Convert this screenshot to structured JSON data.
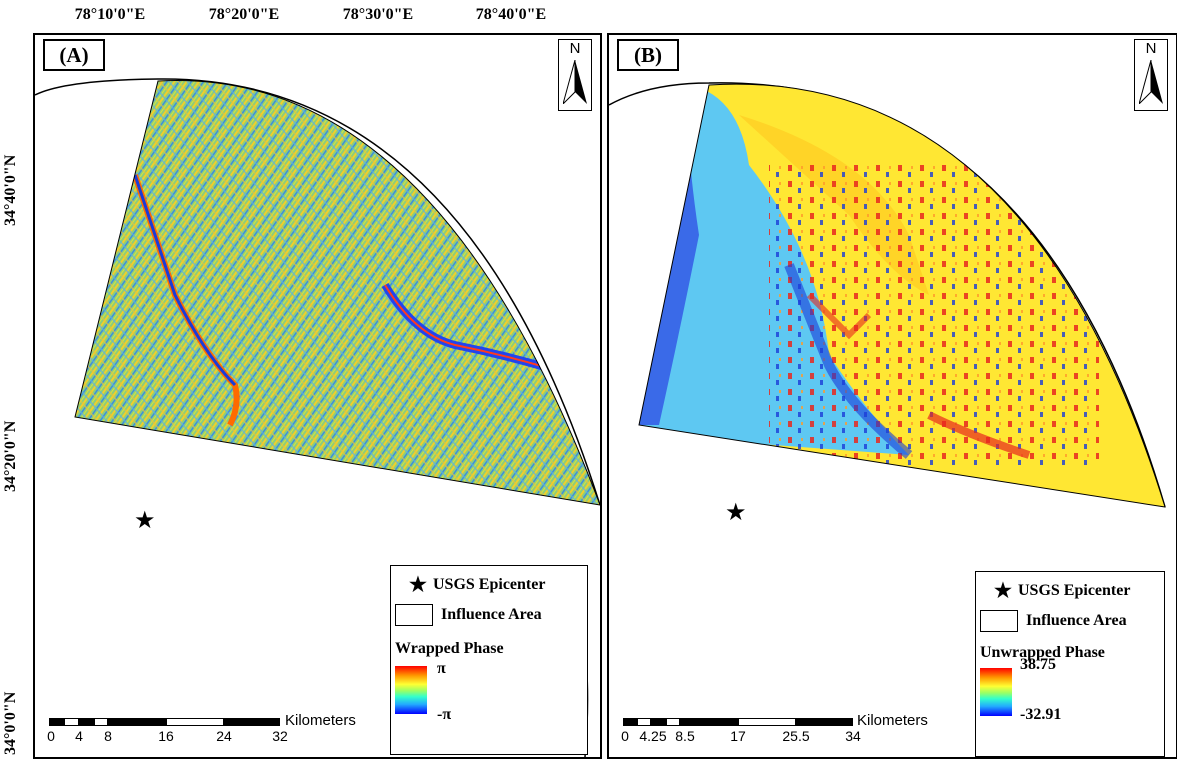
{
  "graticule": {
    "longitudes": [
      "78°10'0\"E",
      "78°20'0\"E",
      "78°30'0\"E",
      "78°40'0\"E"
    ],
    "latitudes": [
      "34°40'0\"N",
      "34°20'0\"N",
      "34°0'0\"N"
    ]
  },
  "north_arrow": {
    "letter": "N"
  },
  "panel_a": {
    "label": "(A)",
    "legend": {
      "epicenter": "USGS Epicenter",
      "influence": "Influence Area",
      "ramp_title": "Wrapped Phase",
      "ramp_high": "π",
      "ramp_low": "-π"
    },
    "scalebar": {
      "unit": "Kilometers",
      "ticks": [
        "0",
        "4",
        "8",
        "16",
        "24",
        "32"
      ]
    }
  },
  "panel_b": {
    "label": "(B)",
    "legend": {
      "epicenter": "USGS Epicenter",
      "influence": "Influence Area",
      "ramp_title": "Unwrapped Phase",
      "ramp_high": "38.75",
      "ramp_low": "-32.91"
    },
    "scalebar": {
      "unit": "Kilometers",
      "ticks": [
        "0",
        "4.25",
        "8.5",
        "17",
        "25.5",
        "34"
      ]
    }
  },
  "colors": {
    "wrapped_base": "#8fcc7a",
    "unwrapped_yellow": "#ffe733",
    "unwrapped_blue": "#5ec8f2",
    "deep_blue": "#1a3cd8",
    "red": "#e8281e"
  }
}
